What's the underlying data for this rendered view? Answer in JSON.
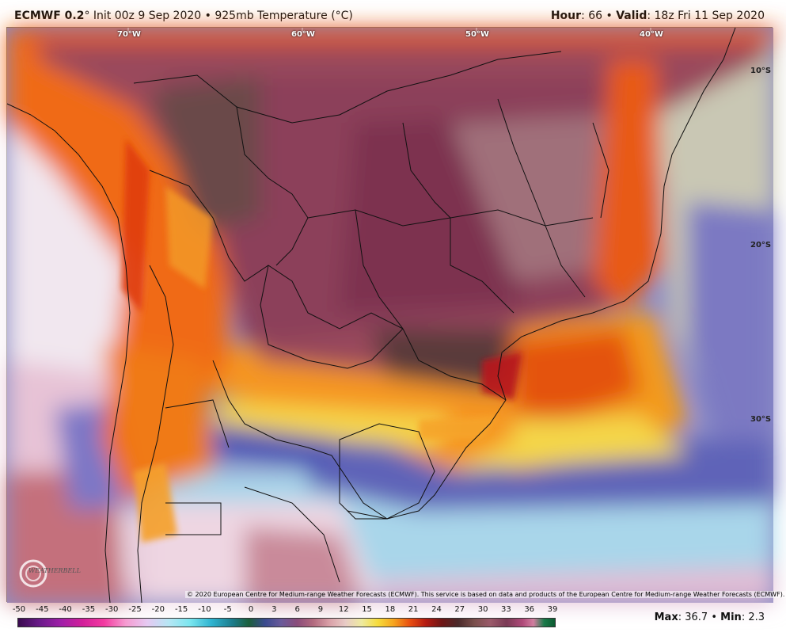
{
  "header": {
    "model": "ECMWF 0.2",
    "degree_mark": "°",
    "init": "Init 00z 9 Sep 2020",
    "bullet": "•",
    "field": "925mb Temperature (°C)",
    "hour_label": "Hour",
    "hour_value": ": 66",
    "valid_label": "Valid",
    "valid_value": ": 18z Fri 11 Sep 2020"
  },
  "map": {
    "lon_labels": [
      "70°W",
      "60°W",
      "50°W",
      "40°W"
    ],
    "lat_labels": [
      "10°S",
      "20°S",
      "30°S"
    ],
    "copyright": "© 2020 European Centre for Medium-range Weather Forecasts (ECMWF). This service is based on data and products of the European Centre for Medium-range Weather Forecasts (ECMWF).",
    "logo_text": "WEATHERBELL"
  },
  "scale": {
    "ticks": [
      "-50",
      "-45",
      "-40",
      "-35",
      "-30",
      "-25",
      "-20",
      "-15",
      "-10",
      "-5",
      "0",
      "3",
      "6",
      "9",
      "12",
      "15",
      "18",
      "21",
      "24",
      "27",
      "30",
      "33",
      "36",
      "39"
    ]
  },
  "stats": {
    "max_label": "Max",
    "max_value": ": 36.7",
    "min_label": "Min",
    "min_value": ": 2.3"
  }
}
